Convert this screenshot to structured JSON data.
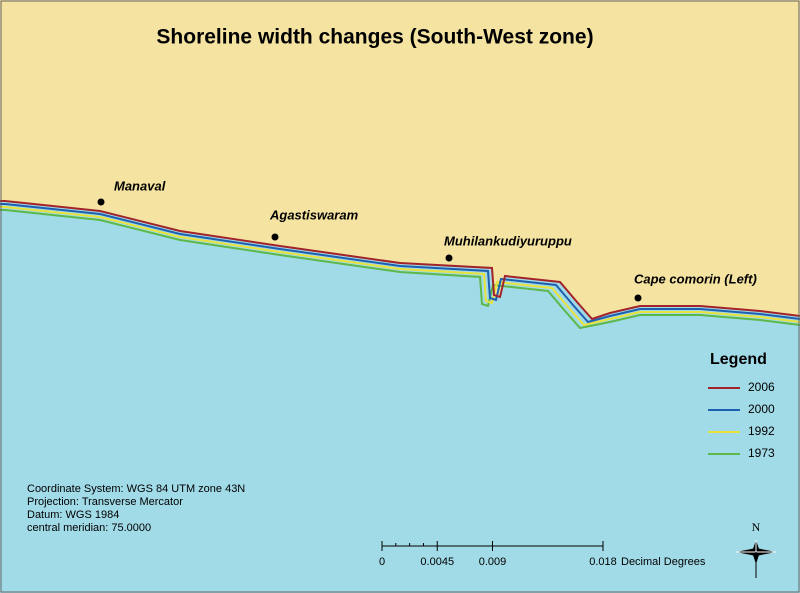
{
  "title": "Shoreline width changes (South-West zone)",
  "places": [
    "Manaval",
    "Agastiswaram",
    "Muhilankudiyuruppu",
    "Cape comorin (Left)"
  ],
  "legend": {
    "title": "Legend",
    "entries": [
      {
        "name": "2006",
        "color": "#a3232a"
      },
      {
        "name": "2000",
        "color": "#1f5fb0"
      },
      {
        "name": "1992",
        "color": "#e8e23a"
      },
      {
        "name": "1973",
        "color": "#5cb84a"
      }
    ]
  },
  "info": [
    "Coordinate System: WGS 84 UTM zone 43N",
    "Projection: Transverse Mercator",
    "Datum: WGS 1984",
    "central meridian: 75.0000"
  ],
  "scale_bar": {
    "ticks": [
      0,
      0.0045,
      0.009,
      0.018
    ],
    "unit": "Decimal Degrees"
  },
  "north": "N"
}
